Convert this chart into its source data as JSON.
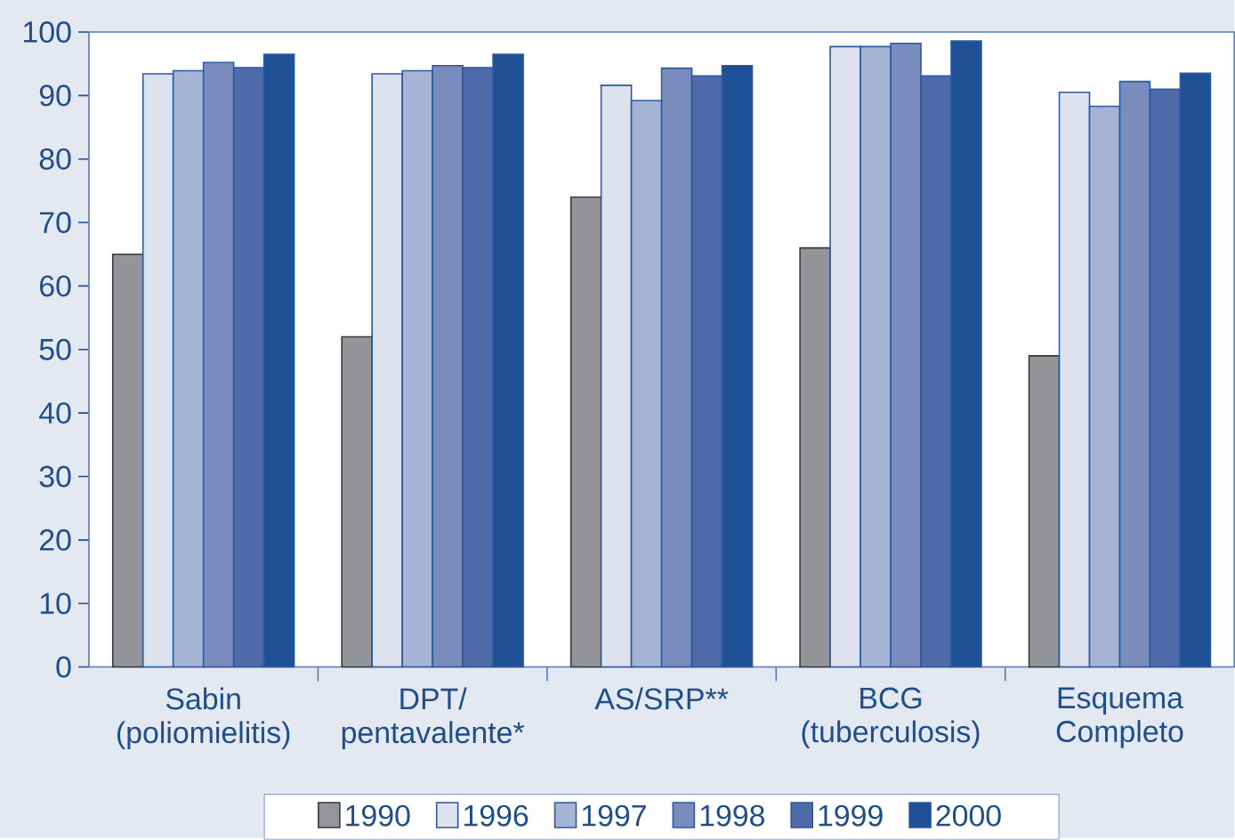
{
  "chart_data": {
    "type": "bar",
    "categories": [
      "Sabin (poliomielitis)",
      "DPT/ pentavalente*",
      "AS/SRP**",
      "BCG (tuberculosis)",
      "Esquema Completo"
    ],
    "series": [
      {
        "name": "1990",
        "color": "#939598",
        "values": [
          65,
          52,
          74,
          66,
          49
        ]
      },
      {
        "name": "1996",
        "color": "#dde2ee",
        "values": [
          93.4,
          93.4,
          91.6,
          97.7,
          90.5
        ]
      },
      {
        "name": "1997",
        "color": "#a5b3d5",
        "values": [
          93.9,
          93.9,
          89.2,
          97.7,
          88.3
        ]
      },
      {
        "name": "1998",
        "color": "#7a8cbd",
        "values": [
          95.2,
          94.7,
          94.3,
          98.2,
          92.2
        ]
      },
      {
        "name": "1999",
        "color": "#4e6aa8",
        "values": [
          94.4,
          94.4,
          93.1,
          93.1,
          91
        ]
      },
      {
        "name": "2000",
        "color": "#1f5096",
        "values": [
          96.5,
          96.5,
          94.7,
          98.6,
          93.5
        ]
      }
    ],
    "ylim": [
      0,
      100
    ],
    "yticks": [
      0,
      10,
      20,
      30,
      40,
      50,
      60,
      70,
      80,
      90,
      100
    ],
    "legend": "bottom",
    "grid": false
  }
}
